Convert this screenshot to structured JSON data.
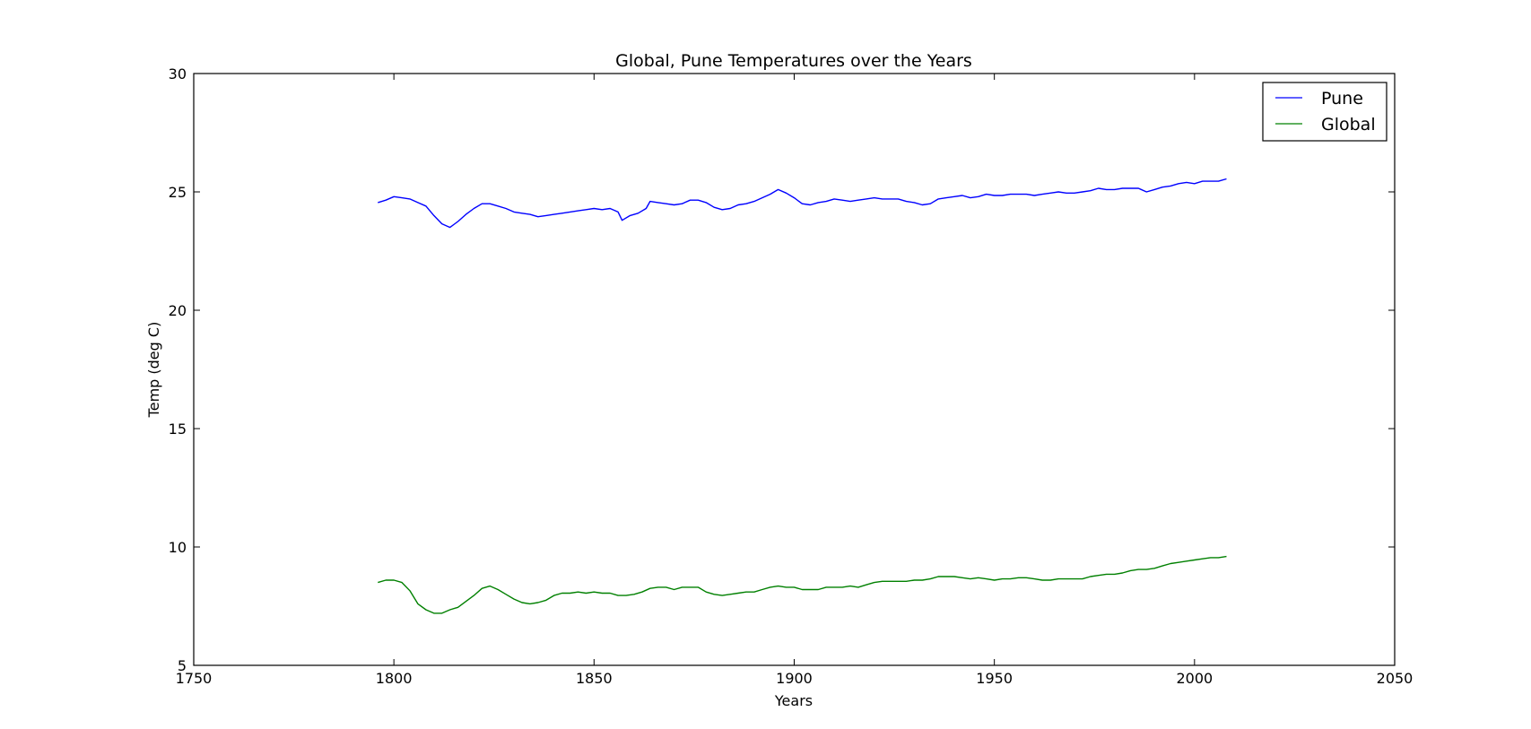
{
  "chart_data": {
    "type": "line",
    "title": "Global, Pune Temperatures over the Years",
    "xlabel": "Years",
    "ylabel": "Temp (deg C)",
    "xlim": [
      1750,
      2050
    ],
    "ylim": [
      5,
      30
    ],
    "xticks": [
      1750,
      1800,
      1850,
      1900,
      1950,
      2000,
      2050
    ],
    "yticks": [
      5,
      10,
      15,
      20,
      25,
      30
    ],
    "grid": false,
    "legend": "top-right",
    "series": [
      {
        "name": "Pune",
        "color": "#0000ff",
        "points": [
          [
            1796,
            24.55
          ],
          [
            1798,
            24.65
          ],
          [
            1800,
            24.8
          ],
          [
            1802,
            24.75
          ],
          [
            1804,
            24.7
          ],
          [
            1806,
            24.55
          ],
          [
            1808,
            24.4
          ],
          [
            1810,
            24.0
          ],
          [
            1812,
            23.65
          ],
          [
            1814,
            23.5
          ],
          [
            1816,
            23.75
          ],
          [
            1818,
            24.05
          ],
          [
            1820,
            24.3
          ],
          [
            1822,
            24.5
          ],
          [
            1824,
            24.5
          ],
          [
            1826,
            24.4
          ],
          [
            1828,
            24.3
          ],
          [
            1830,
            24.15
          ],
          [
            1832,
            24.1
          ],
          [
            1834,
            24.05
          ],
          [
            1836,
            23.95
          ],
          [
            1838,
            24.0
          ],
          [
            1840,
            24.05
          ],
          [
            1842,
            24.1
          ],
          [
            1844,
            24.15
          ],
          [
            1846,
            24.2
          ],
          [
            1848,
            24.25
          ],
          [
            1850,
            24.3
          ],
          [
            1852,
            24.25
          ],
          [
            1854,
            24.3
          ],
          [
            1856,
            24.15
          ],
          [
            1857,
            23.8
          ],
          [
            1859,
            24.0
          ],
          [
            1861,
            24.1
          ],
          [
            1863,
            24.3
          ],
          [
            1864,
            24.6
          ],
          [
            1866,
            24.55
          ],
          [
            1868,
            24.5
          ],
          [
            1870,
            24.45
          ],
          [
            1872,
            24.5
          ],
          [
            1874,
            24.65
          ],
          [
            1876,
            24.65
          ],
          [
            1878,
            24.55
          ],
          [
            1880,
            24.35
          ],
          [
            1882,
            24.25
          ],
          [
            1884,
            24.3
          ],
          [
            1886,
            24.45
          ],
          [
            1888,
            24.5
          ],
          [
            1890,
            24.6
          ],
          [
            1892,
            24.75
          ],
          [
            1894,
            24.9
          ],
          [
            1896,
            25.1
          ],
          [
            1898,
            24.95
          ],
          [
            1900,
            24.75
          ],
          [
            1902,
            24.5
          ],
          [
            1904,
            24.45
          ],
          [
            1906,
            24.55
          ],
          [
            1908,
            24.6
          ],
          [
            1910,
            24.7
          ],
          [
            1912,
            24.65
          ],
          [
            1914,
            24.6
          ],
          [
            1916,
            24.65
          ],
          [
            1918,
            24.7
          ],
          [
            1920,
            24.75
          ],
          [
            1922,
            24.7
          ],
          [
            1924,
            24.7
          ],
          [
            1926,
            24.7
          ],
          [
            1928,
            24.6
          ],
          [
            1930,
            24.55
          ],
          [
            1932,
            24.45
          ],
          [
            1934,
            24.5
          ],
          [
            1936,
            24.7
          ],
          [
            1938,
            24.75
          ],
          [
            1940,
            24.8
          ],
          [
            1942,
            24.85
          ],
          [
            1944,
            24.75
          ],
          [
            1946,
            24.8
          ],
          [
            1948,
            24.9
          ],
          [
            1950,
            24.85
          ],
          [
            1952,
            24.85
          ],
          [
            1954,
            24.9
          ],
          [
            1956,
            24.9
          ],
          [
            1958,
            24.9
          ],
          [
            1960,
            24.85
          ],
          [
            1962,
            24.9
          ],
          [
            1964,
            24.95
          ],
          [
            1966,
            25.0
          ],
          [
            1968,
            24.95
          ],
          [
            1970,
            24.95
          ],
          [
            1972,
            25.0
          ],
          [
            1974,
            25.05
          ],
          [
            1976,
            25.15
          ],
          [
            1978,
            25.1
          ],
          [
            1980,
            25.1
          ],
          [
            1982,
            25.15
          ],
          [
            1984,
            25.15
          ],
          [
            1986,
            25.15
          ],
          [
            1988,
            25.0
          ],
          [
            1990,
            25.1
          ],
          [
            1992,
            25.2
          ],
          [
            1994,
            25.25
          ],
          [
            1996,
            25.35
          ],
          [
            1998,
            25.4
          ],
          [
            2000,
            25.35
          ],
          [
            2002,
            25.45
          ],
          [
            2004,
            25.45
          ],
          [
            2006,
            25.45
          ],
          [
            2008,
            25.55
          ]
        ]
      },
      {
        "name": "Global",
        "color": "#008000",
        "points": [
          [
            1796,
            8.5
          ],
          [
            1798,
            8.6
          ],
          [
            1800,
            8.6
          ],
          [
            1802,
            8.5
          ],
          [
            1804,
            8.15
          ],
          [
            1806,
            7.6
          ],
          [
            1808,
            7.35
          ],
          [
            1810,
            7.2
          ],
          [
            1812,
            7.2
          ],
          [
            1814,
            7.35
          ],
          [
            1816,
            7.45
          ],
          [
            1818,
            7.7
          ],
          [
            1820,
            7.95
          ],
          [
            1822,
            8.25
          ],
          [
            1824,
            8.35
          ],
          [
            1826,
            8.2
          ],
          [
            1828,
            8.0
          ],
          [
            1830,
            7.8
          ],
          [
            1832,
            7.65
          ],
          [
            1834,
            7.6
          ],
          [
            1836,
            7.65
          ],
          [
            1838,
            7.75
          ],
          [
            1840,
            7.95
          ],
          [
            1842,
            8.05
          ],
          [
            1844,
            8.05
          ],
          [
            1846,
            8.1
          ],
          [
            1848,
            8.05
          ],
          [
            1850,
            8.1
          ],
          [
            1852,
            8.05
          ],
          [
            1854,
            8.05
          ],
          [
            1856,
            7.95
          ],
          [
            1858,
            7.95
          ],
          [
            1860,
            8.0
          ],
          [
            1862,
            8.1
          ],
          [
            1864,
            8.25
          ],
          [
            1866,
            8.3
          ],
          [
            1868,
            8.3
          ],
          [
            1870,
            8.2
          ],
          [
            1872,
            8.3
          ],
          [
            1874,
            8.3
          ],
          [
            1876,
            8.3
          ],
          [
            1878,
            8.1
          ],
          [
            1880,
            8.0
          ],
          [
            1882,
            7.95
          ],
          [
            1884,
            8.0
          ],
          [
            1886,
            8.05
          ],
          [
            1888,
            8.1
          ],
          [
            1890,
            8.1
          ],
          [
            1892,
            8.2
          ],
          [
            1894,
            8.3
          ],
          [
            1896,
            8.35
          ],
          [
            1898,
            8.3
          ],
          [
            1900,
            8.3
          ],
          [
            1902,
            8.2
          ],
          [
            1904,
            8.2
          ],
          [
            1906,
            8.2
          ],
          [
            1908,
            8.3
          ],
          [
            1910,
            8.3
          ],
          [
            1912,
            8.3
          ],
          [
            1914,
            8.35
          ],
          [
            1916,
            8.3
          ],
          [
            1918,
            8.4
          ],
          [
            1920,
            8.5
          ],
          [
            1922,
            8.55
          ],
          [
            1924,
            8.55
          ],
          [
            1926,
            8.55
          ],
          [
            1928,
            8.55
          ],
          [
            1930,
            8.6
          ],
          [
            1932,
            8.6
          ],
          [
            1934,
            8.65
          ],
          [
            1936,
            8.75
          ],
          [
            1938,
            8.75
          ],
          [
            1940,
            8.75
          ],
          [
            1942,
            8.7
          ],
          [
            1944,
            8.65
          ],
          [
            1946,
            8.7
          ],
          [
            1948,
            8.65
          ],
          [
            1950,
            8.6
          ],
          [
            1952,
            8.65
          ],
          [
            1954,
            8.65
          ],
          [
            1956,
            8.7
          ],
          [
            1958,
            8.7
          ],
          [
            1960,
            8.65
          ],
          [
            1962,
            8.6
          ],
          [
            1964,
            8.6
          ],
          [
            1966,
            8.65
          ],
          [
            1968,
            8.65
          ],
          [
            1970,
            8.65
          ],
          [
            1972,
            8.65
          ],
          [
            1974,
            8.75
          ],
          [
            1976,
            8.8
          ],
          [
            1978,
            8.85
          ],
          [
            1980,
            8.85
          ],
          [
            1982,
            8.9
          ],
          [
            1984,
            9.0
          ],
          [
            1986,
            9.05
          ],
          [
            1988,
            9.05
          ],
          [
            1990,
            9.1
          ],
          [
            1992,
            9.2
          ],
          [
            1994,
            9.3
          ],
          [
            1996,
            9.35
          ],
          [
            1998,
            9.4
          ],
          [
            2000,
            9.45
          ],
          [
            2002,
            9.5
          ],
          [
            2004,
            9.55
          ],
          [
            2006,
            9.55
          ],
          [
            2008,
            9.6
          ]
        ]
      }
    ]
  }
}
